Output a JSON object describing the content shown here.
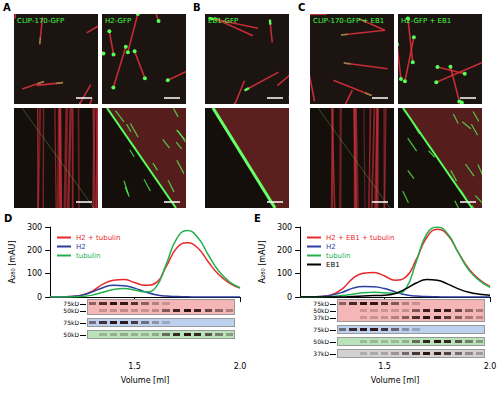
{
  "microscopy": {
    "panels": [
      {
        "letter": "A",
        "images": [
          "CLIP-170-GFP",
          "H2-GFP"
        ]
      },
      {
        "letter": "B",
        "images": [
          "EB1-GFP"
        ]
      },
      {
        "letter": "C",
        "images": [
          "CLIP-170-GFP + EB1",
          "H2-GFP + EB1"
        ]
      }
    ]
  },
  "chart_data": [
    {
      "type": "line",
      "panel_label": "D",
      "x_label": "Volume [ml]",
      "y_label": "A₂₈₀ [mAU]",
      "x": [
        1.1,
        1.15,
        1.2,
        1.25,
        1.3,
        1.35,
        1.4,
        1.45,
        1.5,
        1.55,
        1.6,
        1.65,
        1.7,
        1.75,
        1.8,
        1.85,
        1.9,
        1.95,
        2.0
      ],
      "xlim": [
        1.1,
        2.0
      ],
      "xticks": [
        1.5,
        {
          "value": 2,
          "label": "2.0"
        }
      ],
      "ylim": [
        0,
        300
      ],
      "yticks": [
        0,
        100,
        200,
        300
      ],
      "grid": false,
      "legend": "upper left",
      "series": [
        {
          "name": "H2 + tubulin",
          "color": "#e8282b",
          "values": [
            0,
            0,
            2,
            8,
            25,
            55,
            72,
            75,
            62,
            50,
            60,
            130,
            210,
            232,
            210,
            150,
            95,
            60,
            38
          ]
        },
        {
          "name": "H2",
          "color": "#2b3fa0",
          "values": [
            0,
            0,
            2,
            8,
            22,
            40,
            50,
            48,
            38,
            22,
            10,
            4,
            2,
            1,
            0,
            0,
            0,
            0,
            0
          ]
        },
        {
          "name": "tubulin",
          "color": "#22b14c",
          "values": [
            0,
            0,
            0,
            2,
            8,
            20,
            32,
            36,
            30,
            22,
            40,
            140,
            250,
            285,
            255,
            180,
            110,
            65,
            40
          ]
        }
      ],
      "gels": [
        {
          "color": "#f4b6b6",
          "rows": [
            {
              "label": "75kD",
              "series": "H2"
            },
            {
              "label": "50kD",
              "series": "tubulin"
            }
          ]
        },
        {
          "color": "#bcd0f0",
          "rows": [
            {
              "label": "75kD",
              "series": "H2"
            }
          ]
        },
        {
          "color": "#b9e3b9",
          "rows": [
            {
              "label": "50kD",
              "series": "tubulin"
            }
          ]
        }
      ]
    },
    {
      "type": "line",
      "panel_label": "E",
      "x_label": "Volume [ml]",
      "y_label": "A₂₈₀ [mAU]",
      "x": [
        1.1,
        1.15,
        1.2,
        1.25,
        1.3,
        1.35,
        1.4,
        1.45,
        1.5,
        1.55,
        1.6,
        1.65,
        1.7,
        1.75,
        1.8,
        1.85,
        1.9,
        1.95,
        2.0
      ],
      "xlim": [
        1.1,
        2.0
      ],
      "xticks": [
        1.5,
        {
          "value": 2,
          "label": "2.0"
        }
      ],
      "ylim": [
        0,
        300
      ],
      "yticks": [
        0,
        100,
        200,
        300
      ],
      "grid": false,
      "legend": "upper left",
      "series": [
        {
          "name": "H2 + EB1 + tubulin",
          "color": "#e8282b",
          "values": [
            0,
            0,
            2,
            10,
            35,
            80,
            102,
            105,
            90,
            72,
            85,
            160,
            255,
            290,
            265,
            190,
            120,
            75,
            45
          ]
        },
        {
          "name": "H2",
          "color": "#2b3fa0",
          "values": [
            0,
            0,
            2,
            8,
            20,
            38,
            45,
            44,
            36,
            22,
            10,
            4,
            2,
            1,
            0,
            0,
            0,
            0,
            0
          ]
        },
        {
          "name": "tubulin",
          "color": "#22b14c",
          "values": [
            0,
            0,
            0,
            2,
            6,
            12,
            18,
            20,
            18,
            16,
            35,
            150,
            270,
            300,
            270,
            190,
            115,
            70,
            42
          ]
        },
        {
          "name": "EB1",
          "color": "#000000",
          "values": [
            0,
            0,
            0,
            0,
            0,
            2,
            4,
            6,
            8,
            15,
            35,
            60,
            75,
            72,
            55,
            35,
            20,
            12,
            8
          ]
        }
      ],
      "gels": [
        {
          "color": "#f4b6b6",
          "rows": [
            {
              "label": "75kD",
              "series": "H2"
            },
            {
              "label": "50kD",
              "series": "tubulin"
            },
            {
              "label": "37kD",
              "series": "EB1"
            }
          ]
        },
        {
          "color": "#bcd0f0",
          "rows": [
            {
              "label": "75kD",
              "series": "H2"
            }
          ]
        },
        {
          "color": "#b9e3b9",
          "rows": [
            {
              "label": "50kD",
              "series": "tubulin"
            }
          ]
        },
        {
          "color": "#d2d2d2",
          "rows": [
            {
              "label": "37kD",
              "series": "EB1"
            }
          ]
        }
      ]
    }
  ]
}
